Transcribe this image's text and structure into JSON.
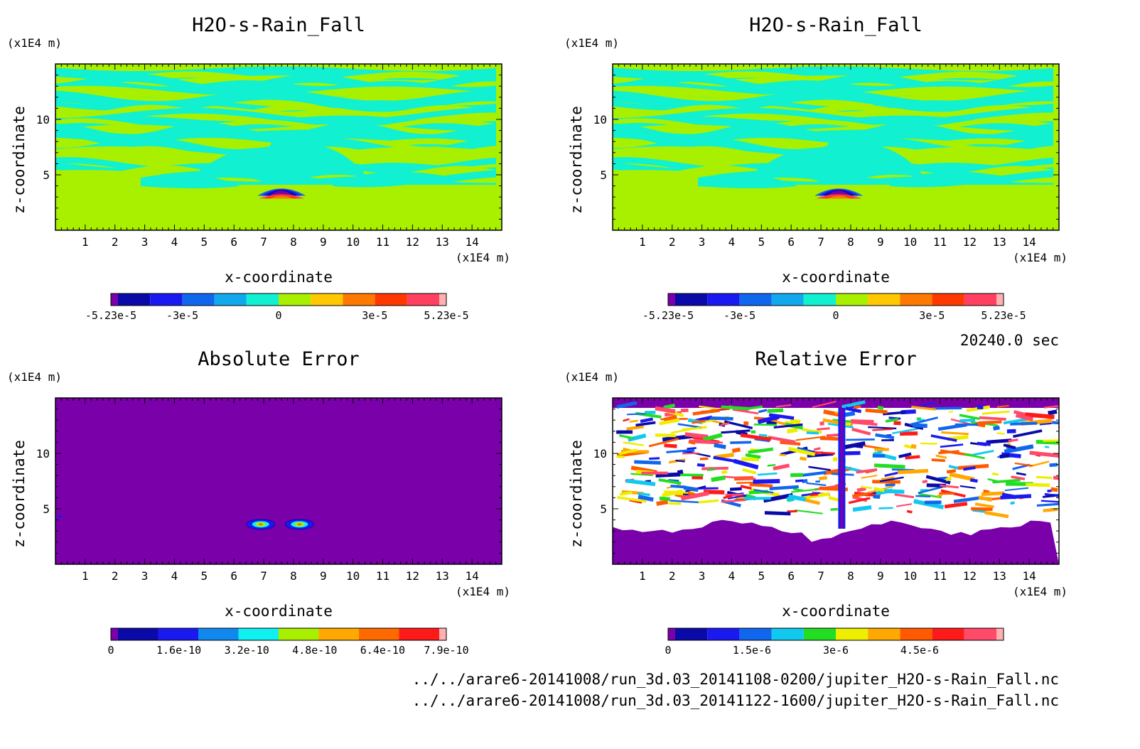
{
  "info": {
    "time": "20240.0 sec",
    "file1": "../../arare6-20141008/run_3d.03_20141108-0200/jupiter_H2O-s-Rain_Fall.nc",
    "file2": "../../arare6-20141008/run_3d.03_20141122-1600/jupiter_H2O-s-Rain_Fall.nc"
  },
  "chart_data": [
    {
      "type": "heatmap",
      "title": "H2O-s-Rain_Fall",
      "xlabel": "x-coordinate",
      "ylabel": "z-coordinate",
      "x_unit": "(x1E4 m)",
      "y_unit": "(x1E4 m)",
      "xlim": [
        0,
        15
      ],
      "ylim": [
        0,
        15
      ],
      "x_ticks": [
        1,
        2,
        3,
        4,
        5,
        6,
        7,
        8,
        9,
        10,
        11,
        12,
        13,
        14
      ],
      "y_ticks": [
        5,
        10
      ],
      "pattern": "field",
      "colorbar": {
        "colors": [
          "#7a00aa",
          "#0a0aa8",
          "#1a1af0",
          "#1166ee",
          "#11a8ee",
          "#11f0d0",
          "#a8f000",
          "#ffc800",
          "#ff7800",
          "#ff3800",
          "#ff4060",
          "#ffb0b0"
        ],
        "labels": [
          "-5.23e-5",
          "-3e-5",
          "0",
          "3e-5",
          "5.23e-5"
        ],
        "range": [
          -5.23e-05,
          5.23e-05
        ]
      }
    },
    {
      "type": "heatmap",
      "title": "H2O-s-Rain_Fall",
      "xlabel": "x-coordinate",
      "ylabel": "z-coordinate",
      "x_unit": "(x1E4 m)",
      "y_unit": "(x1E4 m)",
      "xlim": [
        0,
        15
      ],
      "ylim": [
        0,
        15
      ],
      "x_ticks": [
        1,
        2,
        3,
        4,
        5,
        6,
        7,
        8,
        9,
        10,
        11,
        12,
        13,
        14
      ],
      "y_ticks": [
        5,
        10
      ],
      "pattern": "field",
      "colorbar": {
        "colors": [
          "#7a00aa",
          "#0a0aa8",
          "#1a1af0",
          "#1166ee",
          "#11a8ee",
          "#11f0d0",
          "#a8f000",
          "#ffc800",
          "#ff7800",
          "#ff3800",
          "#ff4060",
          "#ffb0b0"
        ],
        "labels": [
          "-5.23e-5",
          "-3e-5",
          "0",
          "3e-5",
          "5.23e-5"
        ],
        "range": [
          -5.23e-05,
          5.23e-05
        ]
      }
    },
    {
      "type": "heatmap",
      "title": "Absolute Error",
      "xlabel": "x-coordinate",
      "ylabel": "z-coordinate",
      "x_unit": "(x1E4 m)",
      "y_unit": "(x1E4 m)",
      "xlim": [
        0,
        15
      ],
      "ylim": [
        0,
        15
      ],
      "x_ticks": [
        1,
        2,
        3,
        4,
        5,
        6,
        7,
        8,
        9,
        10,
        11,
        12,
        13,
        14
      ],
      "y_ticks": [
        5,
        10
      ],
      "pattern": "abs",
      "colorbar": {
        "colors": [
          "#7a00aa",
          "#0a0aa8",
          "#1a1af0",
          "#1188ee",
          "#11f0f0",
          "#a8f000",
          "#ffa800",
          "#ff6a00",
          "#ff1a1a",
          "#ffb0b0"
        ],
        "labels": [
          "0",
          "1.6e-10",
          "3.2e-10",
          "4.8e-10",
          "6.4e-10",
          "7.9e-10"
        ],
        "range": [
          0,
          7.9e-10
        ]
      }
    },
    {
      "type": "heatmap",
      "title": "Relative Error",
      "xlabel": "x-coordinate",
      "ylabel": "z-coordinate",
      "x_unit": "(x1E4 m)",
      "y_unit": "(x1E4 m)",
      "xlim": [
        0,
        15
      ],
      "ylim": [
        0,
        15
      ],
      "x_ticks": [
        1,
        2,
        3,
        4,
        5,
        6,
        7,
        8,
        9,
        10,
        11,
        12,
        13,
        14
      ],
      "y_ticks": [
        5,
        10
      ],
      "pattern": "rel",
      "colorbar": {
        "colors": [
          "#7a00aa",
          "#0a0aa8",
          "#1a1af0",
          "#1166ee",
          "#11c8ee",
          "#22dd22",
          "#eeee00",
          "#ffa800",
          "#ff5a00",
          "#ff1a1a",
          "#ff4a6a",
          "#ffb0b0"
        ],
        "labels": [
          "0",
          "1.5e-6",
          "3e-6",
          "4.5e-6"
        ],
        "range": [
          0,
          6e-06
        ]
      }
    }
  ]
}
